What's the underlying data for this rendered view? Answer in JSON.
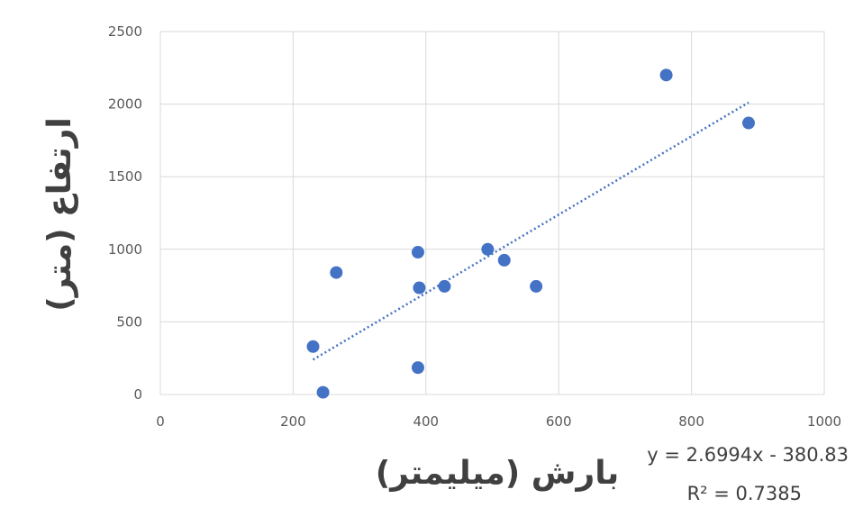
{
  "chart_data": {
    "type": "scatter",
    "xlabel": "بارش (میلیمتر)",
    "ylabel": "ارتفاع (متر)",
    "xlim": [
      0,
      1000
    ],
    "ylim": [
      0,
      2500
    ],
    "xticks": [
      0,
      200,
      400,
      600,
      800,
      1000
    ],
    "yticks": [
      0,
      500,
      1000,
      1500,
      2000,
      2500
    ],
    "grid": true,
    "points": [
      {
        "x": 230,
        "y": 330
      },
      {
        "x": 245,
        "y": 15
      },
      {
        "x": 265,
        "y": 840
      },
      {
        "x": 388,
        "y": 980
      },
      {
        "x": 390,
        "y": 735
      },
      {
        "x": 388,
        "y": 185
      },
      {
        "x": 428,
        "y": 745
      },
      {
        "x": 493,
        "y": 1000
      },
      {
        "x": 518,
        "y": 925
      },
      {
        "x": 566,
        "y": 745
      },
      {
        "x": 762,
        "y": 2200
      },
      {
        "x": 886,
        "y": 1870
      }
    ],
    "trendline": {
      "type": "linear",
      "slope": 2.6994,
      "intercept": -380.83,
      "x_range": [
        230,
        886
      ],
      "equation_label": "y = 2.6994x - 380.83",
      "r2_label": "R² = 0.7385"
    },
    "colors": {
      "marker": "#4472C4",
      "trendline": "#4472C4",
      "grid": "#D9D9D9"
    }
  }
}
